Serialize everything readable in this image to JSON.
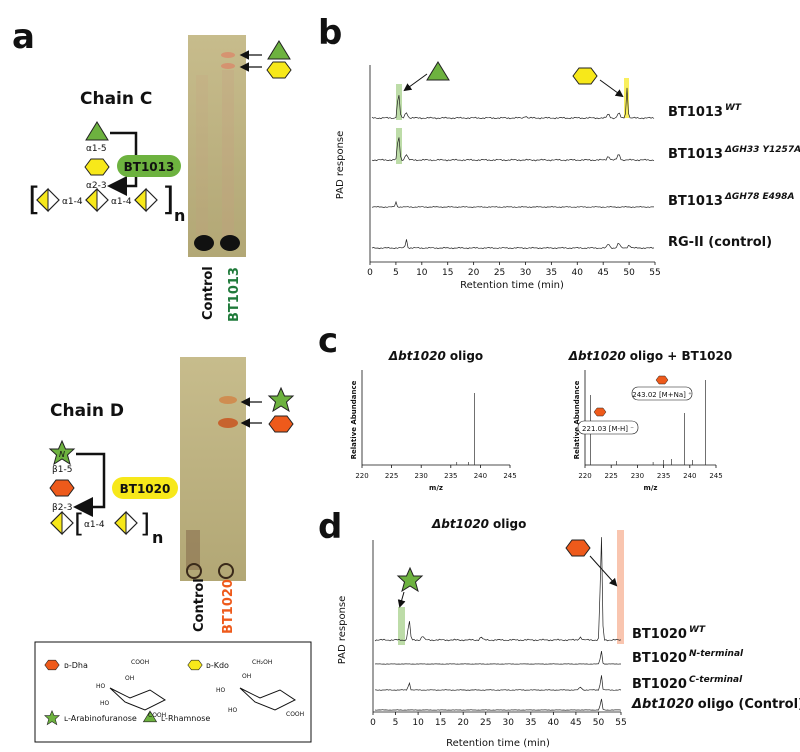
{
  "panel_a": {
    "label": "a",
    "chain_c": {
      "title": "Chain C",
      "linkages": [
        "α1-5",
        "α2-3",
        "α1-4",
        "α1-4"
      ],
      "repeat": "n",
      "enzyme": "BT1013",
      "lanes": [
        "Control",
        "BT1013"
      ]
    },
    "chain_d": {
      "title": "Chain D",
      "linkages": [
        "β1-5",
        "β2-3",
        "α1-4"
      ],
      "repeat": "n",
      "enzyme": "BT1020",
      "lanes": [
        "Control",
        "BT1020"
      ],
      "star_letter": "N"
    }
  },
  "legend": {
    "items": [
      "ᴅ-Dha",
      "ᴅ-Kdo",
      "ʟ-Arabinofuranose",
      "ʟ-Rhamnose"
    ],
    "dha_groups": [
      "COOH",
      "OH",
      "HO",
      "HO",
      "COOH"
    ],
    "kdo_groups": [
      "CH₂OH",
      "OH",
      "HO",
      "HO",
      "COOH"
    ]
  },
  "panel_b": {
    "label": "b",
    "y_label": "PAD response",
    "x_label": "Retention time (min)",
    "xlim": [
      0,
      55
    ],
    "xticks": [
      0,
      5,
      10,
      15,
      20,
      25,
      30,
      35,
      40,
      45,
      50,
      55
    ],
    "traces": [
      {
        "name": "BT1013",
        "sup": "WT"
      },
      {
        "name": "BT1013",
        "sup": "ΔGH33 Y1257A"
      },
      {
        "name": "BT1013",
        "sup": "ΔGH78 E498A"
      },
      {
        "name": "RG-II (control)"
      }
    ]
  },
  "panel_c": {
    "label": "c",
    "spectra": [
      {
        "title_italic": "Δbt1020",
        "title_rest": "oligo",
        "y_label": "Relative Abundance",
        "x_label": "m/z",
        "xlim": [
          220,
          245
        ],
        "xticks": [
          220,
          225,
          230,
          235,
          240,
          245
        ]
      },
      {
        "title_italic": "Δbt1020",
        "title_rest": "oligo + BT1020",
        "y_label": "Relative Abundance",
        "x_label": "m/z",
        "xlim": [
          220,
          245
        ],
        "xticks": [
          220,
          225,
          230,
          235,
          240,
          245
        ],
        "annotations": [
          "221.03 [M-H] ⁻",
          "243.02 [M+Na] ⁺"
        ]
      }
    ]
  },
  "panel_d": {
    "label": "d",
    "title_italic": "Δbt1020",
    "title_rest": "oligo",
    "y_label": "PAD response",
    "x_label": "Retention time (min)",
    "xlim": [
      0,
      55
    ],
    "xticks": [
      0,
      5,
      10,
      15,
      20,
      25,
      30,
      35,
      40,
      45,
      50,
      55
    ],
    "traces": [
      {
        "name": "BT1020",
        "sup": "WT"
      },
      {
        "name": "BT1020",
        "sup": "N-terminal"
      },
      {
        "name": "BT1020",
        "sup": "C-terminal"
      },
      {
        "name_italic": "Δbt1020",
        "name": "oligo  (Control)"
      }
    ]
  }
}
